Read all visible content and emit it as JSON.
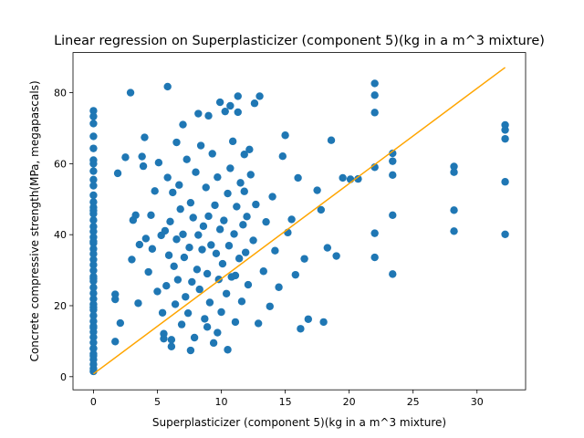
{
  "chart_data": {
    "type": "scatter",
    "title": "Linear regression on Superplasticizer (component 5)(kg in a m^3 mixture)",
    "xlabel": "Superplasticizer (component 5)(kg in a m^3 mixture)",
    "ylabel": "Concrete compressive strength(MPa, megapascals)",
    "xlim": [
      -1.6,
      33.8
    ],
    "ylim": [
      -3.7,
      91.3
    ],
    "x_ticks": [
      0,
      5,
      10,
      15,
      20,
      25,
      30
    ],
    "y_ticks": [
      0,
      20,
      40,
      60,
      80
    ],
    "grid": false,
    "legend": "none",
    "colors": {
      "points": "#1f77b4",
      "line": "#ffa500"
    },
    "regression_line": {
      "x": [
        0,
        32.2
      ],
      "y": [
        0.8,
        87.1
      ]
    },
    "points": {
      "x": [
        0,
        0,
        0,
        0,
        0,
        0,
        0,
        0,
        0,
        0,
        0,
        0,
        0,
        0,
        0,
        0,
        0,
        0,
        0,
        0,
        0,
        0,
        0,
        0,
        0,
        0,
        0,
        0,
        0,
        0,
        0,
        0,
        0,
        0,
        0,
        0,
        0,
        0,
        0,
        0,
        1.7,
        1.7,
        1.7,
        1.9,
        2.1,
        2.5,
        2.9,
        3.0,
        3.1,
        3.3,
        3.5,
        3.6,
        3.8,
        3.9,
        4.0,
        4.1,
        4.3,
        4.5,
        4.8,
        5.0,
        5.1,
        5.3,
        5.4,
        5.5,
        5.6,
        5.7,
        5.8,
        5.9,
        6.0,
        6.1,
        6.2,
        6.3,
        6.4,
        6.5,
        6.6,
        6.7,
        6.8,
        6.9,
        7.0,
        7.1,
        7.2,
        7.3,
        7.4,
        7.5,
        7.6,
        7.7,
        7.8,
        7.9,
        8.0,
        8.1,
        8.2,
        8.3,
        8.4,
        8.5,
        8.6,
        8.7,
        8.8,
        8.9,
        9.0,
        9.1,
        9.2,
        9.3,
        9.4,
        9.5,
        9.6,
        9.7,
        9.8,
        9.9,
        10.0,
        10.1,
        10.2,
        10.3,
        10.4,
        10.5,
        10.6,
        10.7,
        10.8,
        10.9,
        11.0,
        11.1,
        11.2,
        11.3,
        11.4,
        11.5,
        11.6,
        11.7,
        11.8,
        11.9,
        12.0,
        12.1,
        12.3,
        12.5,
        12.7,
        12.9,
        13.3,
        13.5,
        13.8,
        14.0,
        14.2,
        14.5,
        14.8,
        15.0,
        15.2,
        15.5,
        15.8,
        16.0,
        16.2,
        16.5,
        16.8,
        17.5,
        17.8,
        18.0,
        18.3,
        18.6,
        19.0,
        19.5,
        20.1,
        20.7,
        22.0,
        22.0,
        22.0,
        22.0,
        22.0,
        22.0,
        23.4,
        23.4,
        23.4,
        23.4,
        23.4,
        28.2,
        28.2,
        28.2,
        28.2,
        32.2,
        32.2,
        32.2,
        32.2,
        32.2,
        0,
        0,
        0,
        0,
        0,
        0,
        0,
        0,
        0,
        0,
        5.8,
        6.5,
        7.0,
        8.2,
        9.0,
        9.9,
        10.7,
        11.3,
        12.6,
        13.0,
        6.1,
        7.6,
        8.9,
        9.7,
        10.5,
        11.1,
        11.8,
        12.2,
        5.5,
        4.6
      ],
      "y": [
        74.9,
        73.3,
        71.3,
        67.7,
        64.3,
        61.0,
        57.9,
        55.5,
        53.8,
        51.1,
        49.2,
        47.7,
        45.9,
        44.1,
        42.3,
        40.9,
        39.3,
        37.6,
        36.0,
        34.6,
        33.0,
        31.5,
        29.9,
        28.2,
        26.9,
        25.1,
        23.5,
        21.9,
        20.4,
        18.8,
        17.2,
        15.6,
        14.2,
        12.6,
        11.1,
        9.6,
        7.9,
        6.4,
        4.8,
        2.3,
        23.2,
        21.8,
        9.9,
        57.3,
        15.1,
        61.8,
        80.0,
        33.0,
        44.1,
        45.5,
        20.7,
        37.2,
        62.0,
        59.3,
        67.4,
        38.9,
        29.5,
        45.5,
        52.3,
        24.0,
        60.3,
        39.8,
        18.0,
        12.1,
        41.1,
        25.6,
        56.1,
        34.2,
        43.7,
        8.5,
        51.9,
        31.1,
        20.4,
        38.7,
        27.3,
        54.0,
        47.2,
        14.7,
        40.1,
        33.6,
        22.5,
        61.2,
        17.9,
        36.4,
        49.0,
        26.7,
        44.8,
        11.0,
        57.6,
        30.2,
        39.9,
        24.6,
        65.1,
        35.8,
        42.4,
        16.3,
        53.3,
        29.0,
        45.2,
        20.9,
        37.1,
        62.8,
        9.5,
        48.3,
        34.7,
        56.2,
        27.4,
        41.5,
        18.2,
        31.8,
        44.0,
        74.7,
        23.4,
        51.6,
        36.9,
        58.7,
        28.1,
        66.3,
        40.2,
        15.4,
        47.9,
        79.0,
        33.3,
        54.6,
        21.2,
        42.8,
        62.6,
        35.0,
        45.1,
        25.9,
        56.9,
        38.4,
        48.5,
        15.0,
        29.7,
        43.6,
        19.8,
        50.7,
        35.5,
        25.2,
        62.1,
        68.0,
        40.6,
        44.3,
        28.7,
        56.0,
        13.5,
        33.2,
        16.2,
        52.5,
        47.0,
        15.4,
        36.3,
        66.6,
        34.0,
        56.0,
        55.6,
        55.7,
        82.6,
        79.3,
        74.4,
        59.0,
        40.4,
        33.6,
        62.9,
        60.7,
        56.8,
        45.5,
        28.9,
        59.2,
        57.6,
        46.9,
        41.0,
        70.9,
        69.5,
        67.0,
        54.9,
        40.1,
        60.0,
        46.8,
        38.1,
        27.6,
        19.5,
        13.8,
        8.0,
        5.9,
        3.5,
        1.5,
        81.7,
        66.0,
        71.0,
        74.1,
        73.5,
        77.3,
        76.3,
        74.5,
        77.0,
        79.0,
        10.4,
        7.4,
        14.0,
        12.4,
        7.6,
        28.5,
        52.2,
        64.0,
        10.7,
        36.0
      ]
    }
  }
}
